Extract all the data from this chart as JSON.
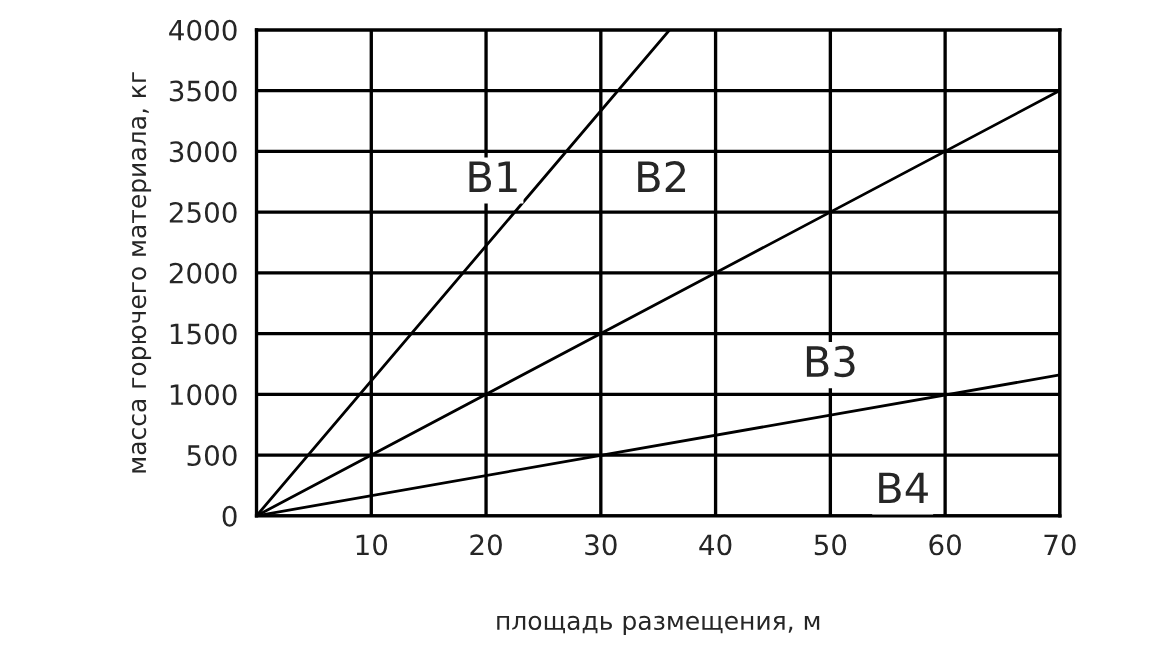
{
  "chart_data": {
    "type": "line",
    "xlabel": "площадь размещения, м",
    "ylabel": "масса горючего материала, кг",
    "series": [
      {
        "color": "#000000",
        "x": [
          0,
          36
        ],
        "values": [
          0,
          4000
        ]
      },
      {
        "color": "#000000",
        "x": [
          0,
          70
        ],
        "values": [
          0,
          3500
        ]
      },
      {
        "color": "#000000",
        "x": [
          0,
          70
        ],
        "values": [
          0,
          1160
        ]
      }
    ],
    "annotations": [
      "B1",
      "B2",
      "B3",
      "B4"
    ],
    "xlim": [
      0,
      70
    ],
    "xticks": [
      10,
      20,
      30,
      40,
      50,
      60,
      70
    ],
    "ylim": [
      0,
      4000
    ],
    "yticks": [
      0,
      500,
      1000,
      1500,
      2000,
      2500,
      3000,
      3500,
      4000
    ],
    "grid": true,
    "legend": false,
    "marker": "none",
    "line_style": "solid"
  }
}
